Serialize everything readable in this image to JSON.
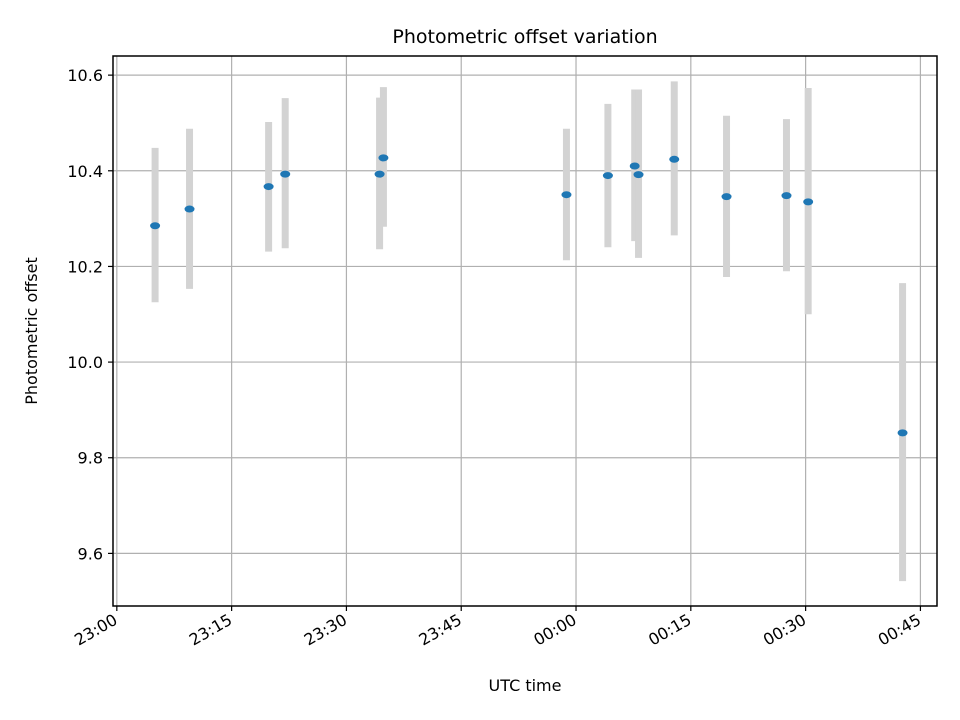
{
  "chart_data": {
    "type": "scatter",
    "title": "Photometric offset variation",
    "xlabel": "UTC time",
    "ylabel": "Photometric offset",
    "x_tick_labels": [
      "23:00",
      "23:15",
      "23:30",
      "23:45",
      "00:00",
      "00:15",
      "00:30",
      "00:45"
    ],
    "y_tick_labels": [
      "9.6",
      "9.8",
      "10.0",
      "10.2",
      "10.4",
      "10.6"
    ],
    "xlim": [
      "22:59:30",
      "00:47:10"
    ],
    "ylim": [
      9.49,
      10.64
    ],
    "grid": true,
    "colors": {
      "point": "#1f77b4",
      "errorbar": "#d3d3d3",
      "grid": "#b0b0b0",
      "axes": "#000000"
    },
    "points": [
      {
        "time": "23:05:00",
        "value": 10.285,
        "low": 10.125,
        "high": 10.448
      },
      {
        "time": "23:09:30",
        "value": 10.32,
        "low": 10.153,
        "high": 10.488
      },
      {
        "time": "23:19:50",
        "value": 10.367,
        "low": 10.231,
        "high": 10.502
      },
      {
        "time": "23:22:00",
        "value": 10.393,
        "low": 10.238,
        "high": 10.552
      },
      {
        "time": "23:34:20",
        "value": 10.393,
        "low": 10.236,
        "high": 10.553
      },
      {
        "time": "23:34:50",
        "value": 10.427,
        "low": 10.283,
        "high": 10.575
      },
      {
        "time": "23:58:45",
        "value": 10.35,
        "low": 10.213,
        "high": 10.488
      },
      {
        "time": "00:04:10",
        "value": 10.39,
        "low": 10.24,
        "high": 10.54
      },
      {
        "time": "00:07:40",
        "value": 10.41,
        "low": 10.253,
        "high": 10.57
      },
      {
        "time": "00:08:10",
        "value": 10.392,
        "low": 10.218,
        "high": 10.57
      },
      {
        "time": "00:12:50",
        "value": 10.424,
        "low": 10.265,
        "high": 10.587
      },
      {
        "time": "00:19:40",
        "value": 10.346,
        "low": 10.178,
        "high": 10.515
      },
      {
        "time": "00:27:30",
        "value": 10.348,
        "low": 10.19,
        "high": 10.508
      },
      {
        "time": "00:30:20",
        "value": 10.335,
        "low": 10.1,
        "high": 10.573
      },
      {
        "time": "00:42:40",
        "value": 9.852,
        "low": 9.542,
        "high": 10.165
      }
    ]
  }
}
